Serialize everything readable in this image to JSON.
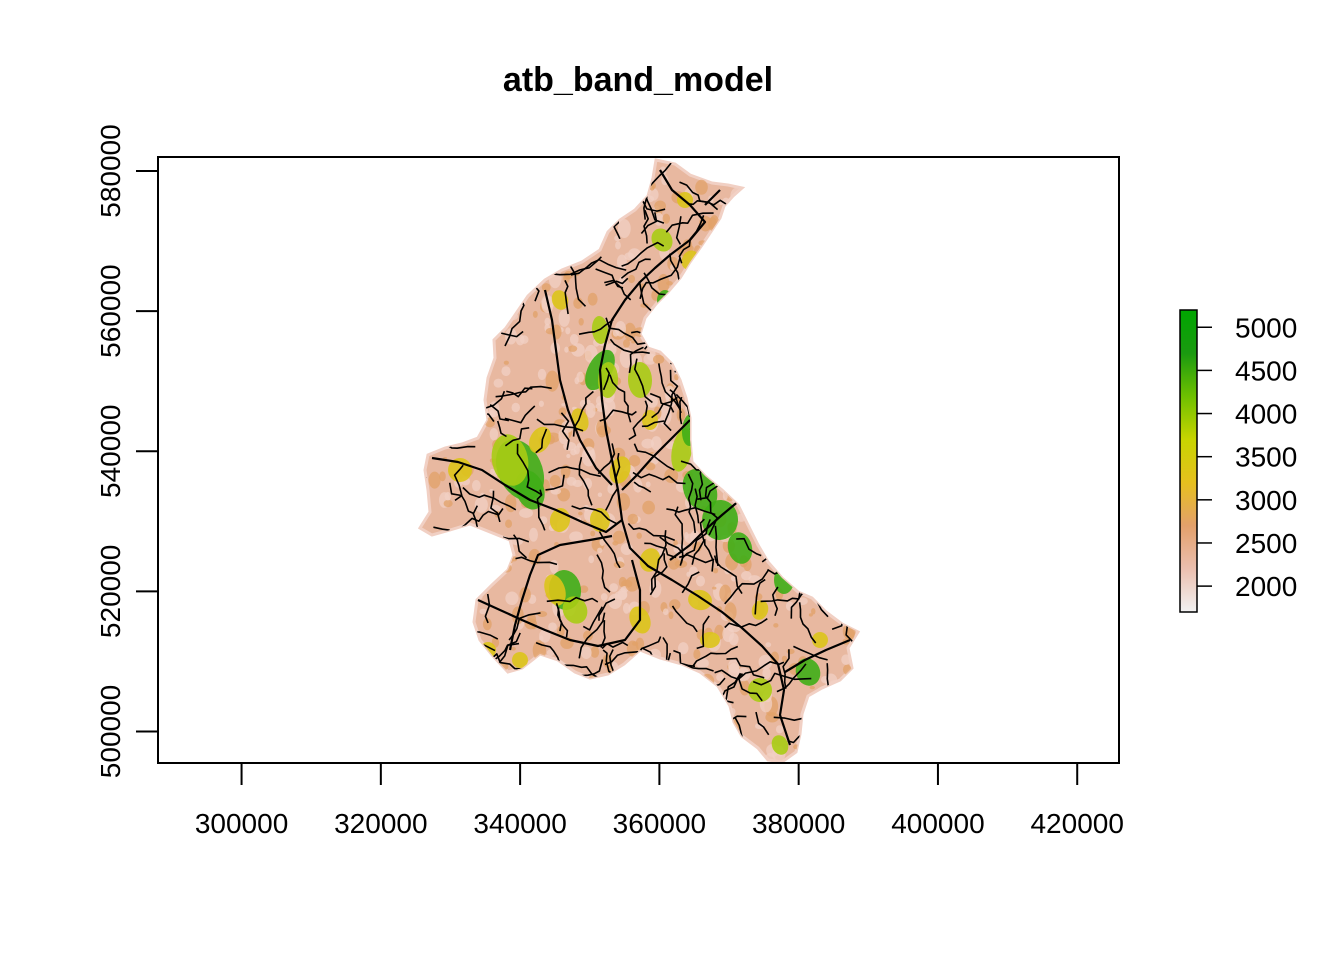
{
  "map": {
    "title": "atb_band_model",
    "x_axis": {
      "range": [
        288000,
        426000
      ],
      "ticks": [
        300000,
        320000,
        340000,
        360000,
        380000,
        400000,
        420000
      ],
      "tick_labels": [
        "300000",
        "320000",
        "340000",
        "360000",
        "380000",
        "400000",
        "420000"
      ]
    },
    "y_axis": {
      "range": [
        495500,
        582000
      ],
      "ticks": [
        500000,
        520000,
        540000,
        560000,
        580000
      ],
      "tick_labels": [
        "500000",
        "520000",
        "540000",
        "560000",
        "580000"
      ]
    },
    "legend": {
      "placement": "right",
      "range": [
        1700,
        5200
      ],
      "ticks": [
        2000,
        2500,
        3000,
        3500,
        4000,
        4500,
        5000
      ],
      "tick_labels": [
        "2000",
        "2500",
        "3000",
        "3500",
        "4000",
        "4500",
        "5000"
      ],
      "colors": [
        "#f2f2f2",
        "#ebbfaf",
        "#e3a06b",
        "#e6c01e",
        "#c8d400",
        "#6ec000",
        "#1a9a10",
        "#00a600"
      ]
    },
    "colors": {
      "land_base": "#e8b8a0",
      "light": "#f1d0c4",
      "orange": "#e2a268",
      "yellow": "#dcc41a",
      "lime": "#a9cc14",
      "green": "#3fae17",
      "river": "#000000"
    }
  }
}
